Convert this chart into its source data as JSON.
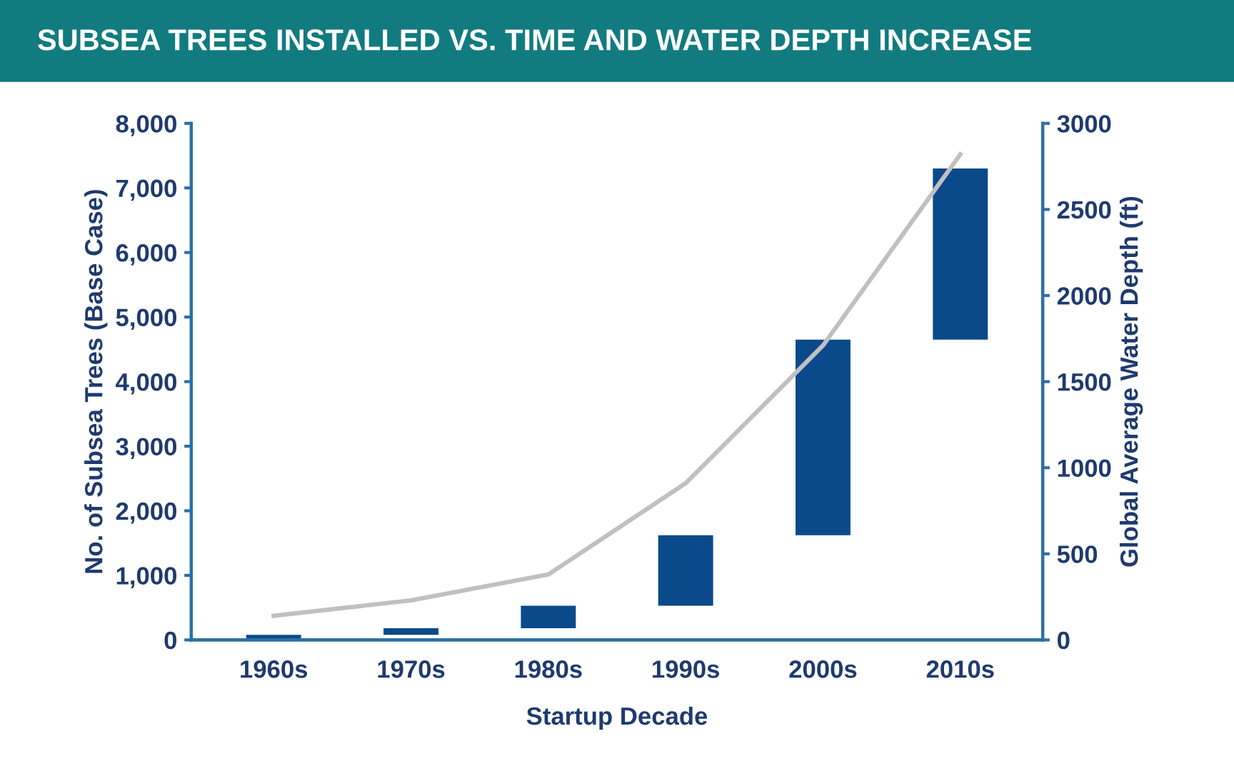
{
  "chart_data": {
    "type": "bar",
    "title": "SUBSEA TREES INSTALLED VS. TIME AND WATER DEPTH INCREASE",
    "xlabel": "Startup Decade",
    "ylabel": "No. of Subsea Trees (Base Case)",
    "y2label": "Global Average Water Depth (ft)",
    "categories": [
      "1960s",
      "1970s",
      "1980s",
      "1990s",
      "2000s",
      "2010s"
    ],
    "series": [
      {
        "color": "#0b4a8a",
        "values": [
          80,
          100,
          350,
          1090,
          3030,
          2650
        ],
        "base": [
          0,
          80,
          180,
          530,
          1620,
          4650
        ]
      },
      {
        "type": "line",
        "axis": "y2",
        "color": "#c0c0c0",
        "values": [
          140,
          230,
          380,
          910,
          1710,
          2820
        ]
      }
    ],
    "ylim": [
      0,
      8000
    ],
    "yticks": [
      0,
      {
        "value": 1000,
        "label": "1,000"
      },
      {
        "value": 2000,
        "label": "2,000"
      },
      {
        "value": 3000,
        "label": "3,000"
      },
      {
        "value": 4000,
        "label": "4,000"
      },
      {
        "value": 5000,
        "label": "5,000"
      },
      {
        "value": 6000,
        "label": "6,000"
      },
      {
        "value": 7000,
        "label": "7,000"
      },
      {
        "value": 8000,
        "label": "8,000"
      }
    ],
    "y2lim": [
      0,
      3000
    ],
    "y2ticks": [
      0,
      500,
      1000,
      1500,
      2000,
      2500,
      3000
    ],
    "grid": false,
    "legend": false,
    "marker": "none",
    "line_style": "solid"
  }
}
